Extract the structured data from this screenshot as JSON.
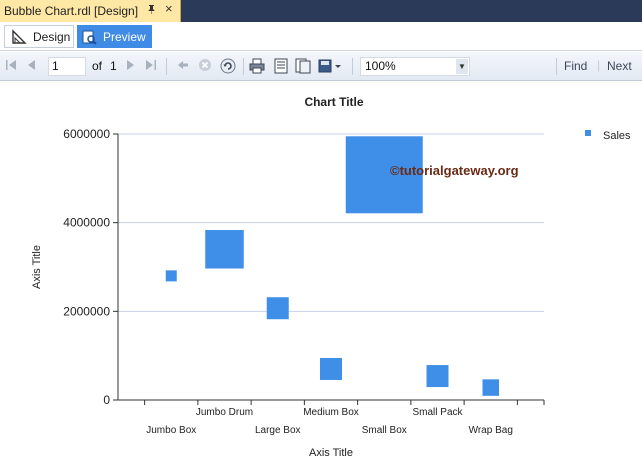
{
  "document_tab": {
    "title": "Bubble Chart.rdl [Design]",
    "pin_icon": "pin-icon",
    "close_icon": "close-icon"
  },
  "view_tabs": [
    {
      "label": "Design",
      "icon": "design-icon",
      "active": false
    },
    {
      "label": "Preview",
      "icon": "preview-icon",
      "active": true
    }
  ],
  "toolbar": {
    "page_value": "1",
    "of_label": "of",
    "total_pages": "1",
    "zoom": "100%",
    "find_label": "Find",
    "next_label": "Next"
  },
  "watermark": "©tutorialgateway.org",
  "colors": {
    "bubble": "#3f8fe8",
    "active_tab": "#3f8be6",
    "doc_tab": "#ffe8a6"
  },
  "chart_data": {
    "type": "scatter",
    "title": "Chart Title",
    "xlabel": "Axis Title",
    "ylabel": "Axis Title",
    "ylim": [
      0,
      6000000
    ],
    "yticks": [
      "0",
      "2000000",
      "4000000",
      "6000000"
    ],
    "categories": [
      "Jumbo Box",
      "Jumbo Drum",
      "Large Box",
      "Medium Box",
      "Small Box",
      "Small Pack",
      "Wrap Bag"
    ],
    "legend": {
      "position": "top-right",
      "entries": [
        "Sales"
      ]
    },
    "series": [
      {
        "name": "Sales",
        "values": [
          2800000,
          3400000,
          2070000,
          700000,
          5080000,
          540000,
          280000
        ],
        "size": [
          1,
          3.5,
          2,
          2,
          7,
          2,
          1.5
        ]
      }
    ]
  }
}
